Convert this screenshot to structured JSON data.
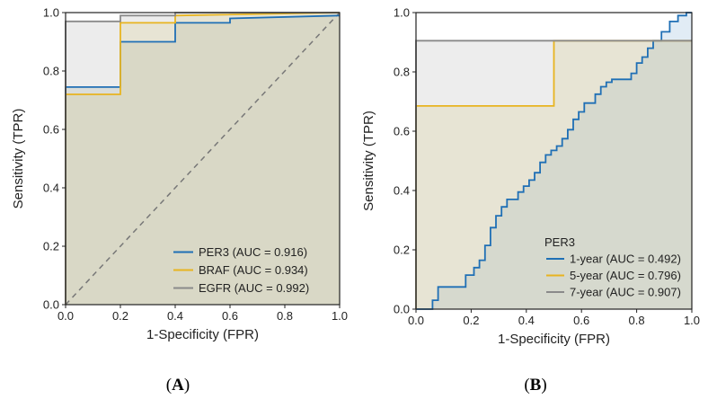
{
  "chart_data": [
    {
      "type": "line",
      "panel_label": "A",
      "title": "",
      "xlabel": "1-Specificity (FPR)",
      "ylabel": "Sensitivity (TPR)",
      "xlim": [
        0,
        1
      ],
      "ylim": [
        0,
        1
      ],
      "xticks": [
        "0.0",
        "0.2",
        "0.4",
        "0.6",
        "0.8",
        "1.0"
      ],
      "yticks": [
        "0.0",
        "0.2",
        "0.4",
        "0.6",
        "0.8",
        "1.0"
      ],
      "grid": false,
      "legend_position": "bottom-right",
      "legend_title": "",
      "diagonal_reference": true,
      "series": [
        {
          "name": "PER3",
          "label": "PER3 (AUC = 0.916)",
          "color": "#1f6fb5",
          "fill": "rgba(160,175,160,0.25)",
          "points": [
            [
              0,
              0
            ],
            [
              0,
              0.745
            ],
            [
              0.2,
              0.745
            ],
            [
              0.2,
              0.9
            ],
            [
              0.4,
              0.9
            ],
            [
              0.4,
              0.965
            ],
            [
              0.6,
              0.965
            ],
            [
              0.6,
              0.98
            ],
            [
              1,
              0.99
            ]
          ]
        },
        {
          "name": "BRAF",
          "label": "BRAF (AUC = 0.934)",
          "color": "#e8b420",
          "fill": "rgba(230,215,140,0.28)",
          "points": [
            [
              0,
              0
            ],
            [
              0,
              0.72
            ],
            [
              0.2,
              0.72
            ],
            [
              0.2,
              0.965
            ],
            [
              0.4,
              0.965
            ],
            [
              0.4,
              0.99
            ],
            [
              1,
              1
            ]
          ]
        },
        {
          "name": "EGFR",
          "label": "EGFR (AUC = 0.992)",
          "color": "#8a8a8a",
          "fill": "rgba(180,180,180,0.25)",
          "points": [
            [
              0,
              0
            ],
            [
              0,
              0.97
            ],
            [
              0.2,
              0.97
            ],
            [
              0.2,
              0.99
            ],
            [
              0.4,
              0.99
            ],
            [
              0.4,
              1
            ],
            [
              1,
              1
            ]
          ]
        }
      ]
    },
    {
      "type": "line",
      "panel_label": "B",
      "title": "",
      "xlabel": "1-Specificity (FPR)",
      "ylabel": "Sensitivity (TPR)",
      "xlim": [
        0,
        1
      ],
      "ylim": [
        0,
        1
      ],
      "xticks": [
        "0.0",
        "0.2",
        "0.4",
        "0.6",
        "0.8",
        "1.0"
      ],
      "yticks": [
        "0.0",
        "0.2",
        "0.4",
        "0.6",
        "0.8",
        "1.0"
      ],
      "grid": false,
      "legend_position": "bottom-right",
      "legend_title": "PER3",
      "diagonal_reference": false,
      "series": [
        {
          "name": "1-year",
          "label": "1-year (AUC = 0.492)",
          "color": "#1f6fb5",
          "fill": "rgba(170,200,225,0.35)",
          "points": [
            [
              0,
              0
            ],
            [
              0.06,
              0
            ],
            [
              0.06,
              0.03
            ],
            [
              0.08,
              0.03
            ],
            [
              0.08,
              0.075
            ],
            [
              0.18,
              0.075
            ],
            [
              0.18,
              0.115
            ],
            [
              0.21,
              0.115
            ],
            [
              0.21,
              0.14
            ],
            [
              0.23,
              0.14
            ],
            [
              0.23,
              0.165
            ],
            [
              0.25,
              0.165
            ],
            [
              0.25,
              0.215
            ],
            [
              0.27,
              0.215
            ],
            [
              0.27,
              0.275
            ],
            [
              0.29,
              0.275
            ],
            [
              0.29,
              0.315
            ],
            [
              0.31,
              0.315
            ],
            [
              0.31,
              0.345
            ],
            [
              0.33,
              0.345
            ],
            [
              0.33,
              0.37
            ],
            [
              0.37,
              0.37
            ],
            [
              0.37,
              0.395
            ],
            [
              0.39,
              0.395
            ],
            [
              0.39,
              0.415
            ],
            [
              0.41,
              0.415
            ],
            [
              0.41,
              0.435
            ],
            [
              0.43,
              0.435
            ],
            [
              0.43,
              0.46
            ],
            [
              0.45,
              0.46
            ],
            [
              0.45,
              0.495
            ],
            [
              0.47,
              0.495
            ],
            [
              0.47,
              0.52
            ],
            [
              0.49,
              0.52
            ],
            [
              0.49,
              0.535
            ],
            [
              0.51,
              0.535
            ],
            [
              0.51,
              0.55
            ],
            [
              0.53,
              0.55
            ],
            [
              0.53,
              0.575
            ],
            [
              0.55,
              0.575
            ],
            [
              0.55,
              0.605
            ],
            [
              0.57,
              0.605
            ],
            [
              0.57,
              0.64
            ],
            [
              0.59,
              0.64
            ],
            [
              0.59,
              0.665
            ],
            [
              0.61,
              0.665
            ],
            [
              0.61,
              0.695
            ],
            [
              0.65,
              0.695
            ],
            [
              0.65,
              0.725
            ],
            [
              0.67,
              0.725
            ],
            [
              0.67,
              0.75
            ],
            [
              0.69,
              0.75
            ],
            [
              0.69,
              0.765
            ],
            [
              0.71,
              0.765
            ],
            [
              0.71,
              0.775
            ],
            [
              0.78,
              0.775
            ],
            [
              0.78,
              0.795
            ],
            [
              0.8,
              0.795
            ],
            [
              0.8,
              0.83
            ],
            [
              0.82,
              0.83
            ],
            [
              0.82,
              0.85
            ],
            [
              0.84,
              0.85
            ],
            [
              0.84,
              0.88
            ],
            [
              0.86,
              0.88
            ],
            [
              0.86,
              0.905
            ],
            [
              0.89,
              0.905
            ],
            [
              0.89,
              0.935
            ],
            [
              0.92,
              0.935
            ],
            [
              0.92,
              0.97
            ],
            [
              0.95,
              0.97
            ],
            [
              0.95,
              0.99
            ],
            [
              0.98,
              0.99
            ],
            [
              0.98,
              1
            ],
            [
              1,
              1
            ]
          ]
        },
        {
          "name": "5-year",
          "label": "5-year (AUC = 0.796)",
          "color": "#e8b420",
          "fill": "rgba(230,215,140,0.28)",
          "points": [
            [
              0,
              0
            ],
            [
              0,
              0.685
            ],
            [
              0.5,
              0.685
            ],
            [
              0.5,
              0.905
            ],
            [
              1,
              0.905
            ]
          ]
        },
        {
          "name": "7-year",
          "label": "7-year (AUC = 0.907)",
          "color": "#8a8a8a",
          "fill": "rgba(175,175,175,0.22)",
          "points": [
            [
              0,
              0
            ],
            [
              0,
              0.905
            ],
            [
              1,
              0.905
            ]
          ]
        }
      ]
    }
  ],
  "panel_labels": {
    "A": "A",
    "B": "B"
  }
}
